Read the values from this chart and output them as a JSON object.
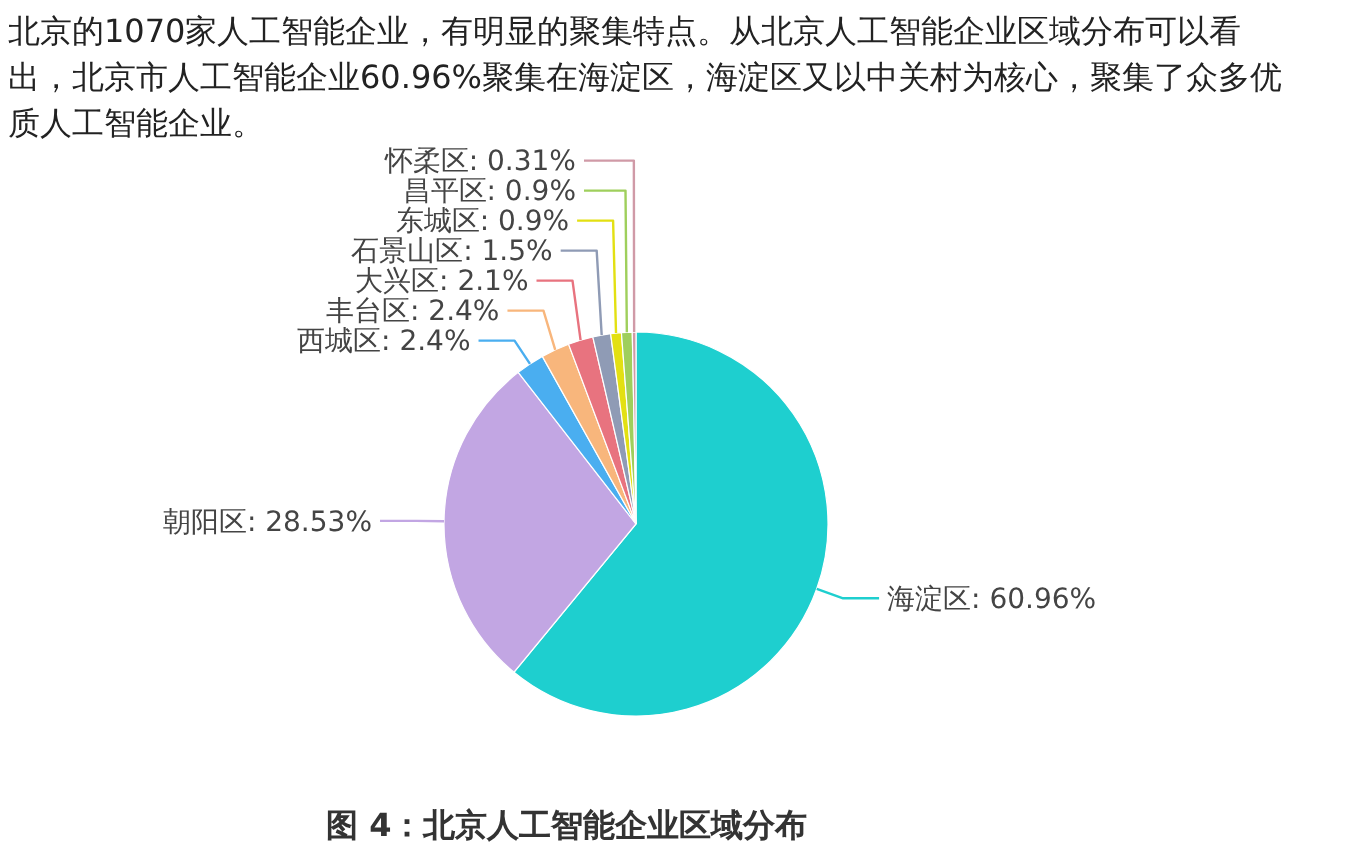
{
  "chart_data": {
    "type": "pie",
    "subtitle": "北京的1070家人工智能企业，有明显的聚集特点。从北京人工智能企业区域分布可以看出，北京市人工智能企业60.96%聚集在海淀区，海淀区又以中关村为核心，聚集了众多优质人工智能企业。",
    "title": "图 4：北京人工智能企业区域分布",
    "categories": [
      "海淀区",
      "朝阳区",
      "西城区",
      "丰台区",
      "大兴区",
      "石景山区",
      "东城区",
      "昌平区",
      "怀柔区"
    ],
    "values": [
      60.96,
      28.53,
      2.4,
      2.4,
      2.1,
      1.5,
      0.9,
      0.9,
      0.31
    ],
    "colors": [
      "#1ecfcf",
      "#c2a6e3",
      "#4aaef0",
      "#f8b67c",
      "#e8737f",
      "#8f9bb5",
      "#e3e012",
      "#9fcf5c",
      "#d09aa7"
    ],
    "value_labels": [
      ": 60.96%",
      ": 28.53%",
      ": 2.4%",
      ": 2.4%",
      ": 2.1%",
      ": 1.5%",
      ": 0.9%",
      ": 0.9%",
      ": 0.31%"
    ]
  }
}
